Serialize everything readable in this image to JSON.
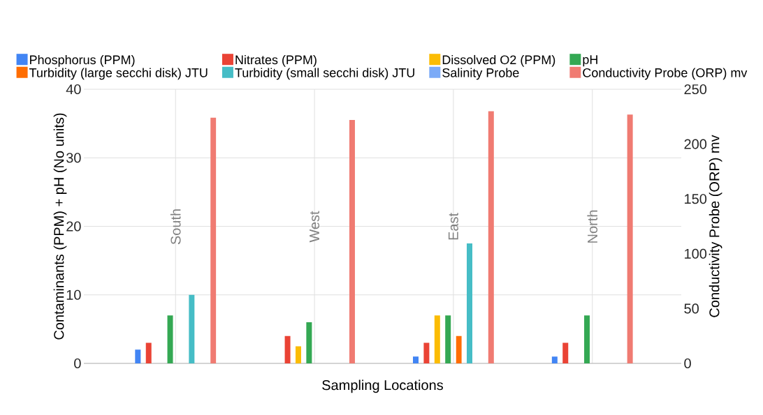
{
  "chart_data": {
    "type": "bar",
    "xlabel": "Sampling Locations",
    "ylabel": "Contaminants (PPM) + pH (No units)",
    "y2label": "Conductivity Probe (ORP) mv",
    "categories": [
      "South",
      "West",
      "East",
      "North"
    ],
    "series": [
      {
        "name": "Phosphorus (PPM)",
        "color": "#4285f4",
        "values": [
          2,
          null,
          1,
          1
        ]
      },
      {
        "name": "Nitrates (PPM)",
        "color": "#ea4335",
        "values": [
          3,
          4,
          3,
          3
        ]
      },
      {
        "name": "Dissolved O2 (PPM)",
        "color": "#fbbc04",
        "values": [
          null,
          2.5,
          7,
          null
        ]
      },
      {
        "name": "pH",
        "color": "#34a853",
        "values": [
          7,
          6,
          7,
          7
        ]
      },
      {
        "name": "Turbidity (large secchi disk) JTU",
        "color": "#ff6d01",
        "values": [
          null,
          null,
          4,
          null
        ]
      },
      {
        "name": "Turbidity (small secchi disk) JTU",
        "color": "#46bdc6",
        "values": [
          10,
          null,
          17.5,
          null
        ]
      },
      {
        "name": "Salinity Probe",
        "color": "#7baaf7",
        "values": [
          null,
          null,
          null,
          null
        ]
      },
      {
        "name": "Conductivity Probe (ORP) mv",
        "color": "#f07b72",
        "axis": "y2",
        "values": [
          224,
          222,
          230,
          227
        ]
      }
    ],
    "ylim": [
      0,
      40
    ],
    "yticks": [
      0,
      10,
      20,
      30,
      40
    ],
    "y2lim": [
      0,
      250
    ],
    "y2ticks": [
      0,
      50,
      100,
      150,
      200,
      250
    ],
    "grid": true,
    "legend": "top"
  }
}
